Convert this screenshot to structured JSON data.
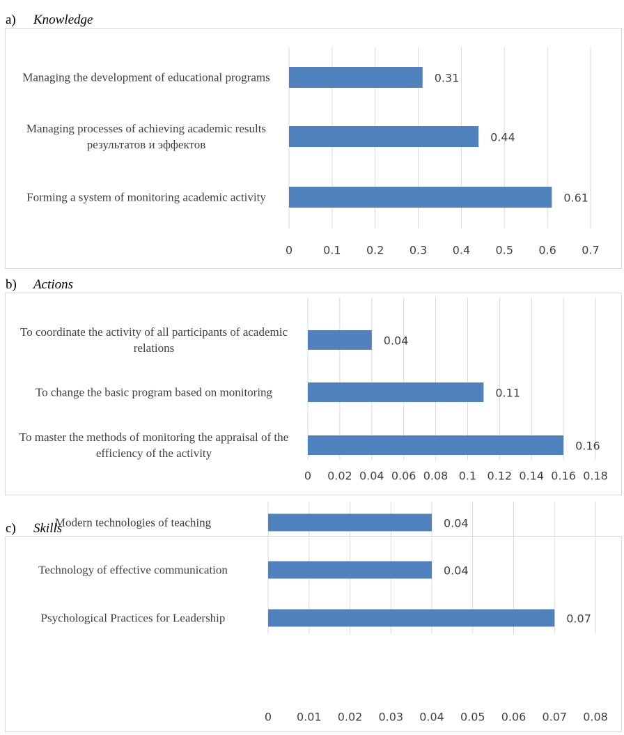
{
  "chart_data": [
    {
      "type": "bar",
      "orientation": "horizontal",
      "panel": "a)",
      "title": "Knowledge",
      "categories": [
        "Managing the development of educational programs",
        "Managing processes of achieving academic results результатов и эффектов",
        "Forming a system of monitoring academic activity"
      ],
      "values": [
        0.31,
        0.44,
        0.61
      ],
      "color": "#4f81bd",
      "xlim": [
        0,
        0.7
      ],
      "xticks": [
        0,
        0.1,
        0.2,
        0.3,
        0.4,
        0.5,
        0.6,
        0.7
      ],
      "grid": true
    },
    {
      "type": "bar",
      "orientation": "horizontal",
      "panel": "b)",
      "title": "Actions",
      "categories": [
        "To coordinate the activity of all participants of academic relations",
        "To change the basic program based on monitoring",
        "To master the methods of monitoring the appraisal of the efficiency of the activity"
      ],
      "values": [
        0.04,
        0.11,
        0.16
      ],
      "color": "#4f81bd",
      "xlim": [
        0,
        0.18
      ],
      "xticks": [
        0,
        0.02,
        0.04,
        0.06,
        0.08,
        0.1,
        0.12,
        0.14,
        0.16,
        0.18
      ],
      "grid": true
    },
    {
      "type": "bar",
      "orientation": "horizontal",
      "panel": "c)",
      "title": "Skills",
      "categories": [
        "Modern technologies of teaching",
        "Technology of effective communication",
        "Psychological Practices for Leadership"
      ],
      "values": [
        0.04,
        0.04,
        0.07
      ],
      "color": "#4f81bd",
      "xlim": [
        0,
        0.08
      ],
      "xticks": [
        0,
        0.01,
        0.02,
        0.03,
        0.04,
        0.05,
        0.06,
        0.07,
        0.08
      ],
      "grid": true
    }
  ]
}
